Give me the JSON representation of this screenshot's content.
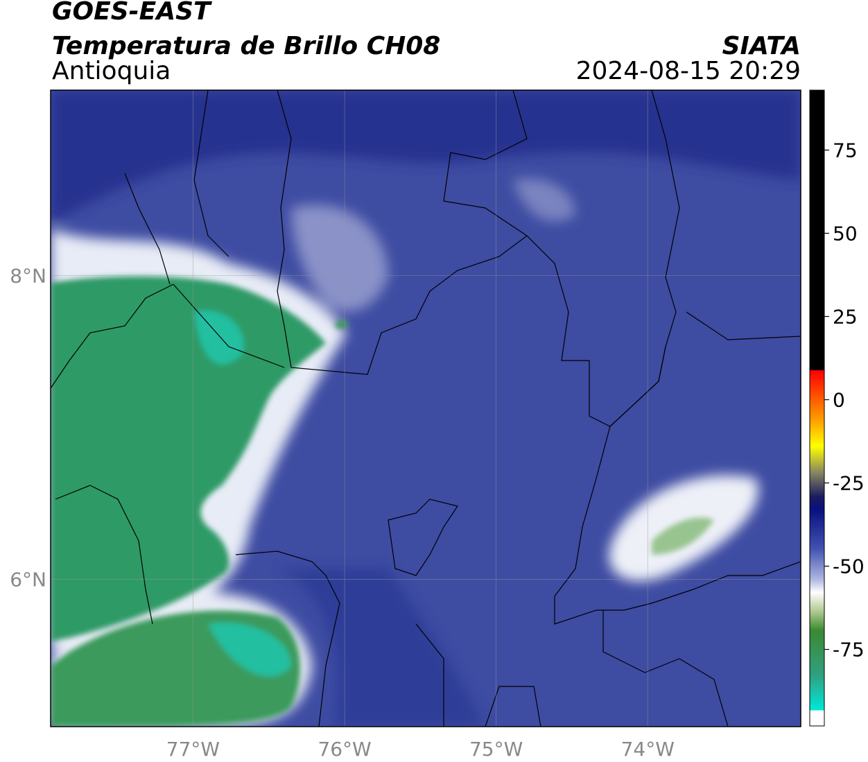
{
  "header": {
    "title": "GOES-EAST",
    "subtitle": "Temperatura de Brillo CH08",
    "region": "Antioquia",
    "source": "SIATA",
    "datetime": "2024-08-15 20:29"
  },
  "map": {
    "xlim": [
      -77.94,
      -72.99
    ],
    "ylim": [
      5.03,
      9.22
    ],
    "xticks": [
      {
        "value": -77,
        "label": "77°W"
      },
      {
        "value": -76,
        "label": "76°W"
      },
      {
        "value": -75,
        "label": "75°W"
      },
      {
        "value": -74,
        "label": "74°W"
      }
    ],
    "yticks": [
      {
        "value": 8,
        "label": "8°N"
      },
      {
        "value": 6,
        "label": "6°N"
      }
    ]
  },
  "colorbar": {
    "clim": [
      -98,
      93
    ],
    "ticks": [
      75,
      50,
      25,
      0,
      -25,
      -50,
      -75
    ]
  }
}
